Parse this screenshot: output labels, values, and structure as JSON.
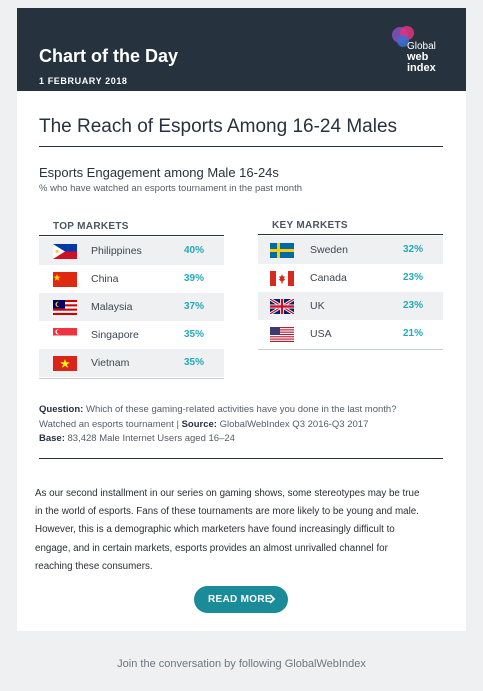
{
  "header": {
    "title": "Chart of the Day",
    "date": "1 FEBRUARY 2018",
    "logo": {
      "line1": "Global",
      "line2": "web",
      "line3": "index",
      "icon": "globalwebindex-logo"
    }
  },
  "main": {
    "title": "The Reach of Esports Among 16-24 Males",
    "subtitle": "Esports Engagement among Male 16-24s",
    "note": "% who have watched an esports tournament in the past month"
  },
  "top_markets": {
    "heading": "TOP MARKETS",
    "rows": [
      {
        "country": "Philippines",
        "value": "40%",
        "flag": "philippines-flag"
      },
      {
        "country": "China",
        "value": "39%",
        "flag": "china-flag"
      },
      {
        "country": "Malaysia",
        "value": "37%",
        "flag": "malaysia-flag"
      },
      {
        "country": "Singapore",
        "value": "35%",
        "flag": "singapore-flag"
      },
      {
        "country": "Vietnam",
        "value": "35%",
        "flag": "vietnam-flag"
      }
    ]
  },
  "key_markets": {
    "heading": "KEY MARKETS",
    "rows": [
      {
        "country": "Sweden",
        "value": "32%",
        "flag": "sweden-flag"
      },
      {
        "country": "Canada",
        "value": "23%",
        "flag": "canada-flag"
      },
      {
        "country": "UK",
        "value": "23%",
        "flag": "uk-flag"
      },
      {
        "country": "USA",
        "value": "21%",
        "flag": "usa-flag"
      }
    ]
  },
  "footnote": {
    "question_label": "Question:",
    "question_line1": " Which of these gaming-related activities have you done in the last month?",
    "question_line2": "Watched an esports tournament  |  ",
    "source_label": "Source:",
    "source_text": " GlobalWebIndex Q3 2016-Q3 2017",
    "base_label": "Base:",
    "base_text": " 83,428 Male Internet Users aged 16–24"
  },
  "body": {
    "lines": [
      "As our second installment in our series on gaming shows, some stereotypes may be true",
      "in the world of esports. Fans of these tournaments are more likely to be young and male.",
      "However, this is a demographic which marketers have found increasingly difficult to",
      "engage, and in certain markets, esports provides an almost unrivalled channel for",
      "reaching these consumers."
    ]
  },
  "cta": {
    "label": "READ MORE",
    "icon": "chevron-right-icon"
  },
  "footer": {
    "text": "Join the conversation by following GlobalWebIndex"
  },
  "colors": {
    "header_bg": "#27323f",
    "accent": "#24a9b8",
    "button": "#1a8c99",
    "page_bg": "#eef0f2"
  }
}
